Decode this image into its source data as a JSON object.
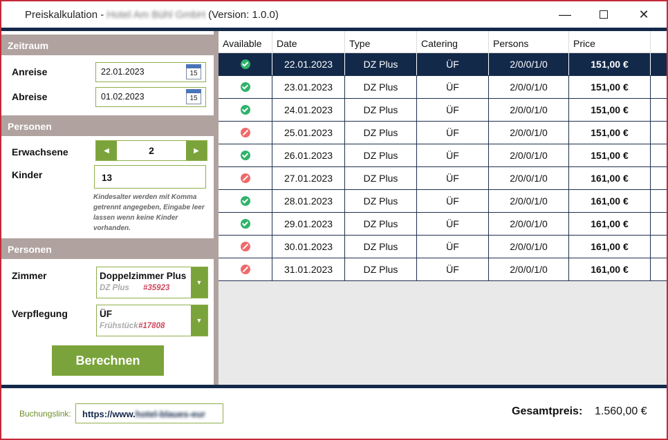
{
  "window": {
    "title_prefix": "Preiskalkulation - ",
    "title_hotel": "Hotel Am Bühl GmbH",
    "title_version": " (Version: 1.0.0)",
    "min_glyph": "—",
    "close_glyph": "✕"
  },
  "sections": {
    "zeitraum": "Zeitraum",
    "personen1": "Personen",
    "personen2": "Personen"
  },
  "form": {
    "anreise_label": "Anreise",
    "anreise_value": "22.01.2023",
    "abreise_label": "Abreise",
    "abreise_value": "01.02.2023",
    "calendar_day": "15",
    "erwachsene_label": "Erwachsene",
    "erwachsene_value": "2",
    "dec_glyph": "◀",
    "inc_glyph": "▶",
    "kinder_label": "Kinder",
    "kinder_value": "13",
    "kinder_hint": "Kindesalter werden mit Komma getrennt angegeben, Eingabe leer lassen wenn keine Kinder vorhanden.",
    "zimmer_label": "Zimmer",
    "zimmer_main": "Doppelzimmer Plus",
    "zimmer_sub": "DZ Plus",
    "zimmer_code": "#35923",
    "verpflegung_label": "Verpflegung",
    "verpflegung_main": "ÜF",
    "verpflegung_sub": "Frühstück",
    "verpflegung_code": "#17808",
    "dropdown_glyph": "▼",
    "calculate_label": "Berechnen"
  },
  "grid": {
    "columns": [
      "Available",
      "Date",
      "Type",
      "Catering",
      "Persons",
      "Price"
    ],
    "rows": [
      {
        "available": true,
        "date": "22.01.2023",
        "type": "DZ Plus",
        "catering": "ÜF",
        "persons": "2/0/0/1/0",
        "price": "151,00 €",
        "selected": true
      },
      {
        "available": true,
        "date": "23.01.2023",
        "type": "DZ Plus",
        "catering": "ÜF",
        "persons": "2/0/0/1/0",
        "price": "151,00 €"
      },
      {
        "available": true,
        "date": "24.01.2023",
        "type": "DZ Plus",
        "catering": "ÜF",
        "persons": "2/0/0/1/0",
        "price": "151,00 €"
      },
      {
        "available": false,
        "date": "25.01.2023",
        "type": "DZ Plus",
        "catering": "ÜF",
        "persons": "2/0/0/1/0",
        "price": "151,00 €"
      },
      {
        "available": true,
        "date": "26.01.2023",
        "type": "DZ Plus",
        "catering": "ÜF",
        "persons": "2/0/0/1/0",
        "price": "151,00 €"
      },
      {
        "available": false,
        "date": "27.01.2023",
        "type": "DZ Plus",
        "catering": "ÜF",
        "persons": "2/0/0/1/0",
        "price": "161,00 €"
      },
      {
        "available": true,
        "date": "28.01.2023",
        "type": "DZ Plus",
        "catering": "ÜF",
        "persons": "2/0/0/1/0",
        "price": "161,00 €"
      },
      {
        "available": true,
        "date": "29.01.2023",
        "type": "DZ Plus",
        "catering": "ÜF",
        "persons": "2/0/0/1/0",
        "price": "161,00 €"
      },
      {
        "available": false,
        "date": "30.01.2023",
        "type": "DZ Plus",
        "catering": "ÜF",
        "persons": "2/0/0/1/0",
        "price": "161,00 €"
      },
      {
        "available": false,
        "date": "31.01.2023",
        "type": "DZ Plus",
        "catering": "ÜF",
        "persons": "2/0/0/1/0",
        "price": "161,00 €"
      }
    ]
  },
  "footer": {
    "booking_label": "Buchungslink:",
    "booking_value_prefix": "https://www.",
    "booking_value_blur": "hotel-blaues-eur",
    "total_label": "Gesamtpreis:",
    "total_value": "1.560,00 €"
  },
  "colors": {
    "accent_green": "#7ba33b",
    "navy": "#13294a",
    "section_header": "#b0a39f",
    "status_ok": "#2fb36a",
    "status_unavailable": "#ee6a6a"
  },
  "icons": {
    "available": "check-circle-icon",
    "unavailable": "no-entry-icon",
    "calendar": "calendar-icon"
  }
}
